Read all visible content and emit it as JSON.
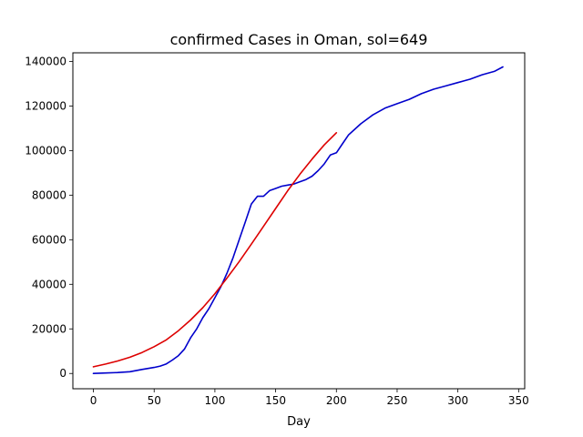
{
  "chart_data": {
    "type": "line",
    "title": "confirmed Cases in Oman, sol=649",
    "xlabel": "Day",
    "ylabel": "",
    "xlim": [
      -16.9,
      355.0
    ],
    "ylim": [
      -6850,
      143850
    ],
    "xticks": [
      0,
      50,
      100,
      150,
      200,
      250,
      300,
      350
    ],
    "yticks": [
      0,
      20000,
      40000,
      60000,
      80000,
      100000,
      120000,
      140000
    ],
    "grid": false,
    "series": [
      {
        "color": "#0000cc",
        "x": [
          0,
          10,
          20,
          30,
          40,
          50,
          55,
          60,
          65,
          70,
          75,
          80,
          85,
          90,
          95,
          100,
          105,
          110,
          115,
          120,
          125,
          130,
          135,
          140,
          145,
          150,
          155,
          160,
          165,
          170,
          175,
          180,
          185,
          190,
          195,
          200,
          205,
          210,
          215,
          220,
          230,
          240,
          250,
          260,
          270,
          280,
          290,
          300,
          310,
          320,
          330,
          337
        ],
        "y": [
          0,
          200,
          400,
          800,
          1800,
          2700,
          3300,
          4300,
          6000,
          8000,
          11000,
          16000,
          20000,
          25000,
          29000,
          34000,
          39000,
          45000,
          52000,
          60000,
          68000,
          76000,
          79500,
          79500,
          82000,
          83000,
          84000,
          84500,
          85000,
          86000,
          87000,
          88500,
          91000,
          94000,
          98000,
          99000,
          103000,
          107000,
          109500,
          112000,
          116000,
          119000,
          121000,
          123000,
          125500,
          127500,
          129000,
          130500,
          132000,
          134000,
          135500,
          137500
        ]
      },
      {
        "color": "#dd0000",
        "x": [
          0,
          10,
          20,
          30,
          40,
          50,
          60,
          70,
          80,
          90,
          100,
          110,
          120,
          130,
          140,
          150,
          160,
          170,
          180,
          190,
          200
        ],
        "y": [
          3000,
          4200,
          5600,
          7300,
          9400,
          12000,
          15100,
          19200,
          24000,
          29500,
          35800,
          42800,
          50200,
          58000,
          66000,
          74000,
          82000,
          89400,
          96200,
          102500,
          108000
        ]
      }
    ]
  }
}
